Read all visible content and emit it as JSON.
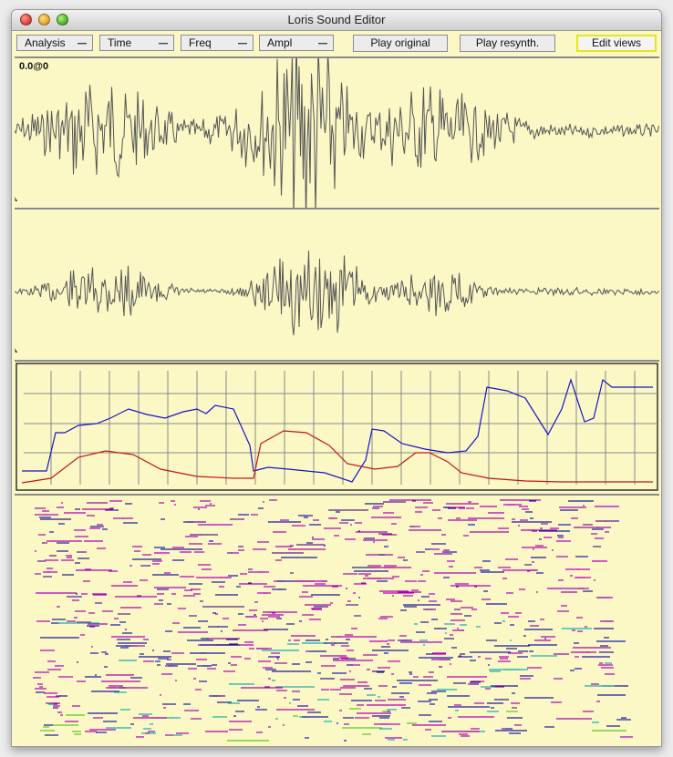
{
  "window": {
    "title": "Loris Sound Editor"
  },
  "toolbar": {
    "menus": [
      {
        "label": "Analysis"
      },
      {
        "label": "Time"
      },
      {
        "label": "Freq"
      },
      {
        "label": "Ampl"
      }
    ],
    "buttons": {
      "play_original": "Play original",
      "play_resynth": "Play resynth.",
      "edit_views": "Edit views"
    }
  },
  "waveform_original": {
    "position_readout": "0.0@0"
  },
  "colors": {
    "background": "#fbf8c6",
    "waveform": "#555555",
    "frequency_trace": "#1515c8",
    "amplitude_trace": "#c01818",
    "partial_high": "#b000b0",
    "partial_mid": "#1a1aa0",
    "partial_low": "#10b0b0"
  }
}
